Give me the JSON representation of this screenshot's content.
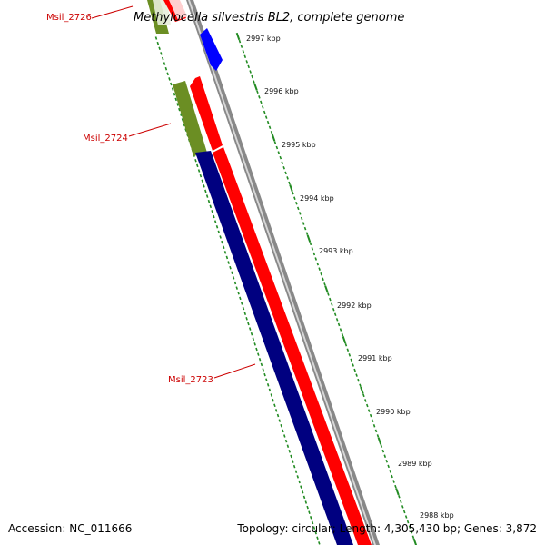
{
  "title": "Methylocella silvestris BL2, complete genome",
  "footer": {
    "accession": "Accession: NC_011666",
    "summary": "Topology: circular; Length: 4,305,430 bp; Genes: 3,872"
  },
  "colors": {
    "backbone": "#888888",
    "backbone_highlight": "#dddddd",
    "reverse_gene": "#ff0000",
    "forward_gene": "#0000ff",
    "cds_red": "#ff0000",
    "cds_blue": "#000080",
    "cds_green": "#6b8e23",
    "ticks": "#228b22",
    "gene_label": "#cc0000"
  },
  "kbp_labels": [
    "2997 kbp",
    "2996 kbp",
    "2995 kbp",
    "2994 kbp",
    "2993 kbp",
    "2992 kbp",
    "2991 kbp",
    "2990 kbp",
    "2989 kbp",
    "2988 kbp"
  ],
  "gene_labels": [
    "Msil_2726",
    "Msil_2724",
    "Msil_2723"
  ]
}
